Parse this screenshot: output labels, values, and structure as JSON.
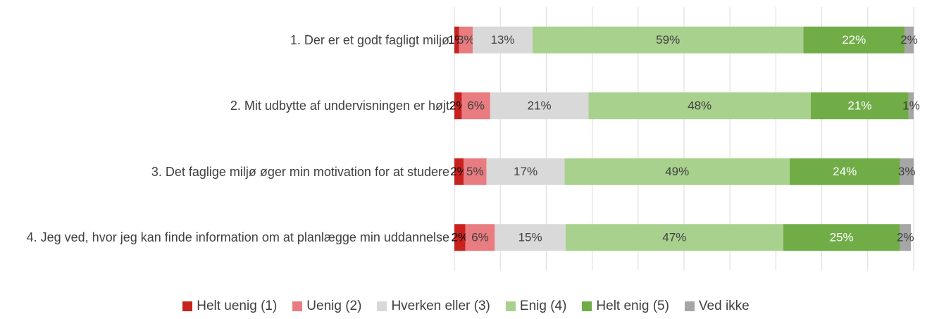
{
  "chart_data": {
    "type": "stacked-bar-horizontal",
    "categories": [
      "1. Der er et godt fagligt miljø",
      "2. Mit udbytte af undervisningen er højt",
      "3. Det faglige miljø øger min motivation for at studere",
      "4. Jeg ved, hvor jeg kan finde information om at planlægge min uddannelse"
    ],
    "series": [
      {
        "name": "Helt uenig (1)",
        "color": "#c9211e",
        "label_color": "#000000",
        "values": [
          1,
          1.6,
          2,
          2.4
        ],
        "value_labels": [
          "1%",
          "2%",
          "2%",
          "2%"
        ]
      },
      {
        "name": "Uenig (2)",
        "color": "#e87c80",
        "label_color": "#404040",
        "values": [
          3,
          6.2,
          5,
          6.4
        ],
        "value_labels": [
          "3%",
          "6%",
          "5%",
          "6%"
        ]
      },
      {
        "name": "Hverken eller (3)",
        "color": "#d9d9d9",
        "label_color": "#404040",
        "values": [
          13,
          21.4,
          17,
          15.4
        ],
        "value_labels": [
          "13%",
          "21%",
          "17%",
          "15%"
        ]
      },
      {
        "name": "Enig (4)",
        "color": "#a9d18e",
        "label_color": "#404040",
        "values": [
          59,
          48.4,
          49,
          47.4
        ],
        "value_labels": [
          "59%",
          "48%",
          "49%",
          "47%"
        ]
      },
      {
        "name": "Helt enig (5)",
        "color": "#70ad47",
        "label_color": "#ffffff",
        "values": [
          22,
          21.3,
          24,
          25.4
        ],
        "value_labels": [
          "22%",
          "21%",
          "24%",
          "25%"
        ]
      },
      {
        "name": "Ved ikke",
        "color": "#a6a6a6",
        "label_color": "#404040",
        "values": [
          2,
          1.1,
          3,
          2.4
        ],
        "value_labels": [
          "2%",
          "1%",
          "3%",
          "2%"
        ]
      }
    ],
    "xlim": [
      0,
      100
    ],
    "xticks": [
      0,
      10,
      20,
      30,
      40,
      50,
      60,
      70,
      80,
      90,
      100
    ],
    "grid": true
  }
}
